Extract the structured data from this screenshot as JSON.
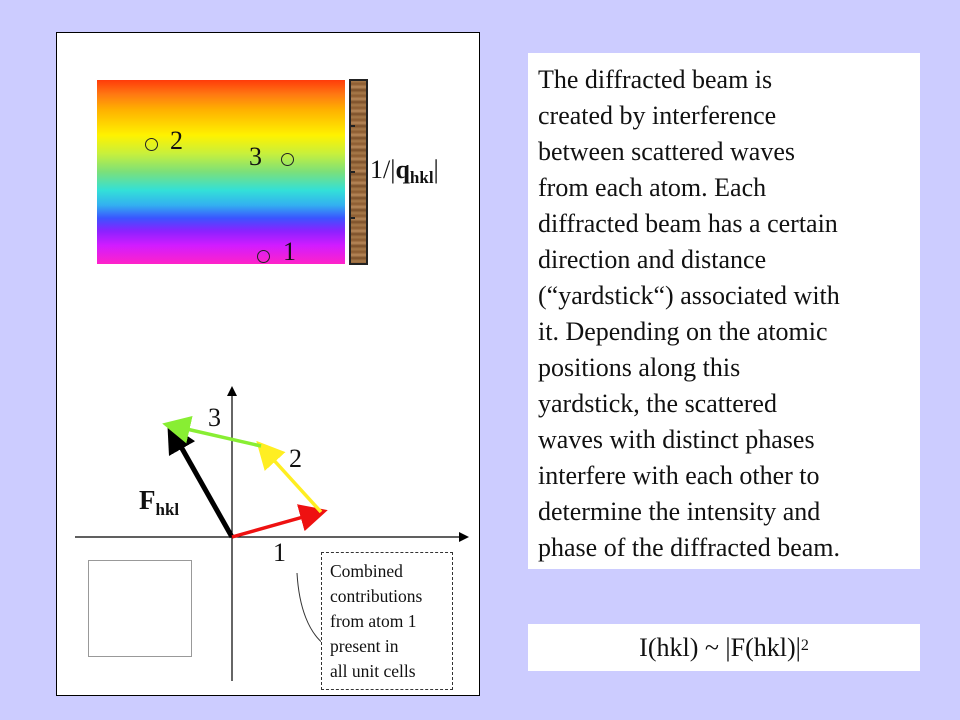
{
  "figure": {
    "atom_labels": {
      "atom1": "1",
      "atom2": "2",
      "atom3": "3"
    },
    "ruler_label": {
      "prefix": "1/|",
      "q": "q",
      "sub": "hkl",
      "suffix": "|"
    },
    "vector_labels": {
      "v1": "1",
      "v2": "2",
      "v3": "3"
    },
    "resultant_label": {
      "main": "F",
      "sub": "hkl"
    },
    "callout_lines": [
      "Combined",
      "contributions",
      "from atom 1",
      "present in",
      "all unit cells"
    ],
    "vector_colors": {
      "v1": "#ee1111",
      "v2": "#ffee22",
      "v3": "#88ee33",
      "resultant": "#000000"
    },
    "inset_colors": [
      "#ff0000",
      "#ff7700",
      "#ffcc00",
      "#ffff00",
      "#99ee00",
      "#33dd33",
      "#00cccc",
      "#0099ff",
      "#3355ff",
      "#7733ff",
      "#cc22ff",
      "#ff22cc"
    ]
  },
  "explanation": {
    "lines": [
      "The diffracted beam is",
      "created by interference",
      "between scattered waves",
      "from each atom. Each",
      "diffracted beam has a certain",
      "direction and distance",
      "(“yardstick“) associated with",
      "it. Depending on the atomic",
      "positions along this",
      "yardstick, the scattered",
      "waves with distinct phases",
      "interfere with each other to",
      "determine the intensity and",
      "phase of the diffracted beam."
    ]
  },
  "formula": {
    "text": "I(hkl) ~ |F(hkl)|",
    "exponent": "2"
  }
}
